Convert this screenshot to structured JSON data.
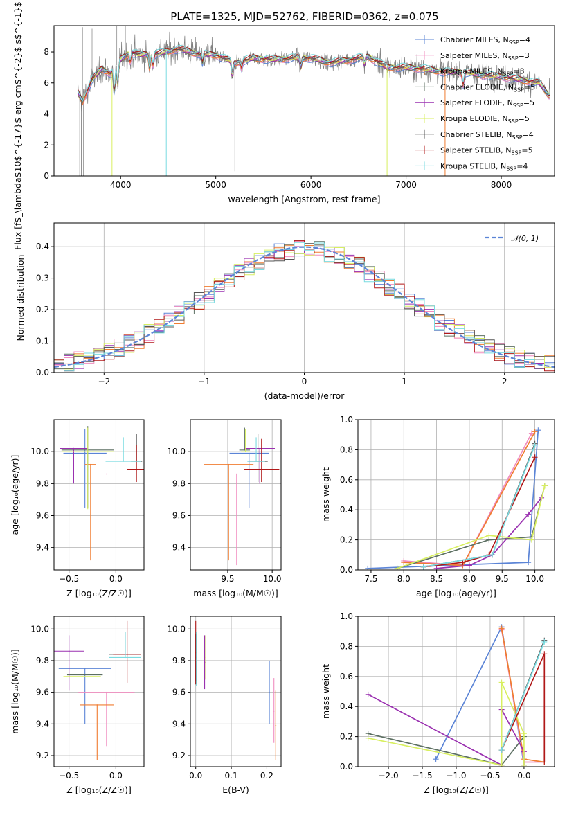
{
  "figure": {
    "title": "PLATE=1325, MJD=52762, FIBERID=0362, z=0.075"
  },
  "colors": {
    "Chabrier MILES": "#5b84d6",
    "Salpeter MILES": "#f08cbf",
    "Kroupa MILES": "#f07c30",
    "Chabrier ELODIE": "#5c6f62",
    "Salpeter ELODIE": "#9a30b0",
    "Kroupa ELODIE": "#d8ef60",
    "Chabrier STELIB": "#555555",
    "Salpeter STELIB": "#b01818",
    "Kroupa STELIB": "#79dbe0",
    "data": "#7f7f7f",
    "normal": "#5b84d6",
    "grid": "#b0b0b0"
  },
  "chart_data": [
    {
      "id": "spectrum",
      "type": "line",
      "xlabel": "wavelength [Angstrom, rest frame]",
      "ylabel": "Flux [f$_\\lambda$10$^{-17}$ erg cm$^{-2}$ s$^{-1}$ A$^{-1}$]",
      "xlim": [
        3300,
        8560
      ],
      "ylim": [
        0,
        9.7
      ],
      "xticks": [
        "4000",
        "5000",
        "6000",
        "7000",
        "8000"
      ],
      "yticks": [
        "0",
        "2",
        "4",
        "6",
        "8"
      ],
      "legend_position": "right",
      "continuum": {
        "x": [
          3550,
          3600,
          3700,
          3800,
          3900,
          4000,
          4100,
          4200,
          4400,
          4600,
          4800,
          5000,
          5200,
          5400,
          5600,
          5800,
          6000,
          6200,
          6400,
          6600,
          6800,
          7000,
          7200,
          7400,
          7600,
          7800,
          8000,
          8200,
          8400,
          8500
        ],
        "y": [
          5.4,
          4.8,
          6.2,
          6.9,
          6.6,
          7.5,
          8.0,
          7.8,
          7.9,
          8.2,
          7.9,
          7.8,
          7.3,
          7.6,
          7.5,
          7.6,
          7.6,
          7.3,
          7.5,
          7.7,
          7.0,
          7.0,
          6.9,
          6.7,
          6.7,
          6.5,
          6.4,
          6.2,
          6.0,
          5.2
        ]
      },
      "series": [
        {
          "name": "Chabrier MILES",
          "n_ssp": "4"
        },
        {
          "name": "Salpeter MILES",
          "n_ssp": "3"
        },
        {
          "name": "Kroupa MILES",
          "n_ssp": "3"
        },
        {
          "name": "Chabrier ELODIE",
          "n_ssp": "5"
        },
        {
          "name": "Salpeter ELODIE",
          "n_ssp": "5"
        },
        {
          "name": "Kroupa ELODIE",
          "n_ssp": "5"
        },
        {
          "name": "Chabrier STELIB",
          "n_ssp": "4"
        },
        {
          "name": "Salpeter STELIB",
          "n_ssp": "5"
        },
        {
          "name": "Kroupa STELIB",
          "n_ssp": "4"
        }
      ]
    },
    {
      "id": "residuals",
      "type": "histogram",
      "xlabel": "(data-model)/error",
      "ylabel": "Normed distribution",
      "xlim": [
        -2.5,
        2.5
      ],
      "ylim": [
        0,
        0.475
      ],
      "xticks": [
        "−2",
        "−1",
        "0",
        "1",
        "2"
      ],
      "yticks": [
        "0.0",
        "0.1",
        "0.2",
        "0.3",
        "0.4"
      ],
      "reference_curve": "𝒩(0, 1)",
      "legend_position": "top-right",
      "bin_width": 0.1
    },
    {
      "id": "age_vs_Z",
      "type": "scatter",
      "xlabel": "Z [log₁₀(Z/Z☉)]",
      "ylabel": "age  [log₁₀(age/yr)]",
      "xlim": [
        -0.66,
        0.3
      ],
      "ylim": [
        9.26,
        10.2
      ],
      "xticks": [
        "−0.5",
        "0.0"
      ],
      "yticks": [
        "9.4",
        "9.6",
        "9.8",
        "10.0"
      ],
      "points": [
        {
          "series": "Chabrier MILES",
          "x": -0.33,
          "xerr": 0.23,
          "y": 9.99,
          "yerr": [
            0.34,
            0.15
          ]
        },
        {
          "series": "Salpeter MILES",
          "x": -0.1,
          "xerr": 0.23,
          "y": 9.86,
          "yerr": [
            0.0,
            0.0
          ]
        },
        {
          "series": "Kroupa MILES",
          "x": -0.27,
          "xerr": 0.06,
          "y": 9.92,
          "yerr": [
            0.6,
            0.0
          ]
        },
        {
          "series": "Chabrier ELODIE",
          "x": -0.3,
          "xerr": 0.28,
          "y": 10.01,
          "yerr": [
            0.36,
            0.15
          ]
        },
        {
          "series": "Salpeter ELODIE",
          "x": -0.45,
          "xerr": 0.15,
          "y": 10.02,
          "yerr": [
            0.22,
            0.0
          ]
        },
        {
          "series": "Kroupa ELODIE",
          "x": -0.3,
          "xerr": 0.28,
          "y": 10.0,
          "yerr": [
            0.36,
            0.15
          ]
        },
        {
          "series": "Chabrier STELIB",
          "x": 0.22,
          "xerr": 0.06,
          "y": 9.94,
          "yerr": [
            0.0,
            0.17
          ]
        },
        {
          "series": "Salpeter STELIB",
          "x": 0.22,
          "xerr": 0.1,
          "y": 9.89,
          "yerr": [
            0.08,
            0.15
          ]
        },
        {
          "series": "Kroupa STELIB",
          "x": 0.08,
          "xerr": 0.19,
          "y": 9.94,
          "yerr": [
            0.0,
            0.15
          ]
        }
      ]
    },
    {
      "id": "age_vs_mass",
      "type": "scatter",
      "xlabel": "mass [log₁₀(M/M☉)]",
      "ylabel": "",
      "xlim": [
        9.08,
        10.1
      ],
      "ylim": [
        9.26,
        10.2
      ],
      "xticks": [
        "9.5",
        "10.0"
      ],
      "yticks": [
        "9.4",
        "9.6",
        "9.8",
        "10.0"
      ],
      "points": [
        {
          "series": "Chabrier MILES",
          "x": 9.74,
          "xerr": 0.22,
          "y": 9.99,
          "yerr": [
            0.34,
            0.0
          ]
        },
        {
          "series": "Salpeter MILES",
          "x": 9.6,
          "xerr": 0.2,
          "y": 9.86,
          "yerr": [
            0.57,
            0.0
          ]
        },
        {
          "series": "Kroupa MILES",
          "x": 9.51,
          "xerr": 0.28,
          "y": 9.92,
          "yerr": [
            0.6,
            0.0
          ]
        },
        {
          "series": "Chabrier ELODIE",
          "x": 9.69,
          "xerr": 0.06,
          "y": 10.01,
          "yerr": [
            0.0,
            0.14
          ]
        },
        {
          "series": "Salpeter ELODIE",
          "x": 9.86,
          "xerr": 0.17,
          "y": 10.02,
          "yerr": [
            0.22,
            0.0
          ]
        },
        {
          "series": "Kroupa ELODIE",
          "x": 9.7,
          "xerr": 0.05,
          "y": 10.0,
          "yerr": [
            0.0,
            0.14
          ]
        },
        {
          "series": "Chabrier STELIB",
          "x": 9.84,
          "xerr": 0.11,
          "y": 9.94,
          "yerr": [
            0.13,
            0.17
          ]
        },
        {
          "series": "Salpeter STELIB",
          "x": 9.88,
          "xerr": 0.2,
          "y": 9.89,
          "yerr": [
            0.08,
            0.19
          ]
        },
        {
          "series": "Kroupa STELIB",
          "x": 9.82,
          "xerr": 0.1,
          "y": 9.94,
          "yerr": [
            0.0,
            0.15
          ]
        }
      ]
    },
    {
      "id": "weight_vs_age",
      "type": "line",
      "xlabel": "age  [log₁₀(age/yr)]",
      "ylabel": "mass weight",
      "xlim": [
        7.3,
        10.3
      ],
      "ylim": [
        0,
        1.0
      ],
      "xticks": [
        "7.5",
        "8.0",
        "8.5",
        "9.0",
        "9.5",
        "10.0"
      ],
      "yticks": [
        "0.0",
        "0.2",
        "0.4",
        "0.6",
        "0.8",
        "1.0"
      ],
      "series": [
        {
          "name": "Chabrier MILES",
          "x": [
            7.45,
            9.9,
            10.05
          ],
          "y": [
            0.01,
            0.05,
            0.93
          ]
        },
        {
          "name": "Salpeter MILES",
          "x": [
            8.0,
            8.9,
            9.95
          ],
          "y": [
            0.06,
            0.03,
            0.91
          ]
        },
        {
          "name": "Kroupa MILES",
          "x": [
            8.0,
            8.9,
            10.0
          ],
          "y": [
            0.05,
            0.03,
            0.92
          ]
        },
        {
          "name": "Chabrier ELODIE",
          "x": [
            7.9,
            9.3,
            9.95,
            10.15
          ],
          "y": [
            0.01,
            0.2,
            0.22,
            0.56
          ]
        },
        {
          "name": "Salpeter ELODIE",
          "x": [
            8.5,
            9.0,
            9.35,
            9.9,
            10.1
          ],
          "y": [
            0.01,
            0.03,
            0.1,
            0.37,
            0.48
          ]
        },
        {
          "name": "Kroupa ELODIE",
          "x": [
            7.9,
            9.3,
            9.95,
            10.15
          ],
          "y": [
            0.01,
            0.23,
            0.2,
            0.56
          ]
        },
        {
          "name": "Chabrier STELIB",
          "x": [
            8.3,
            9.35,
            10.0
          ],
          "y": [
            0.02,
            0.1,
            0.84
          ]
        },
        {
          "name": "Salpeter STELIB",
          "x": [
            8.3,
            8.9,
            9.3,
            10.0
          ],
          "y": [
            0.02,
            0.05,
            0.1,
            0.75
          ]
        },
        {
          "name": "Kroupa STELIB",
          "x": [
            8.3,
            9.35,
            10.0
          ],
          "y": [
            0.02,
            0.1,
            0.83
          ]
        }
      ]
    },
    {
      "id": "mass_vs_Z",
      "type": "scatter",
      "xlabel": "Z [log₁₀(Z/Z☉)]",
      "ylabel": "mass [log₁₀(M/M☉)]",
      "xlim": [
        -0.66,
        0.3
      ],
      "ylim": [
        9.13,
        10.08
      ],
      "xticks": [
        "−0.5",
        "0.0"
      ],
      "yticks": [
        "9.2",
        "9.4",
        "9.6",
        "9.8",
        "10.0"
      ],
      "points": [
        {
          "series": "Chabrier MILES",
          "x": -0.33,
          "xerr": 0.28,
          "y": 9.75,
          "yerr": [
            0.35,
            0.0
          ]
        },
        {
          "series": "Salpeter MILES",
          "x": -0.1,
          "xerr": 0.3,
          "y": 9.6,
          "yerr": [
            0.34,
            0.0
          ]
        },
        {
          "series": "Kroupa MILES",
          "x": -0.2,
          "xerr": 0.18,
          "y": 9.52,
          "yerr": [
            0.35,
            0.0
          ]
        },
        {
          "series": "Chabrier ELODIE",
          "x": -0.33,
          "xerr": 0.19,
          "y": 9.71,
          "yerr": [
            0.0,
            0.0
          ]
        },
        {
          "series": "Salpeter ELODIE",
          "x": -0.5,
          "xerr": 0.16,
          "y": 9.86,
          "yerr": [
            0.25,
            0.1
          ]
        },
        {
          "series": "Kroupa ELODIE",
          "x": -0.36,
          "xerr": 0.2,
          "y": 9.7,
          "yerr": [
            0.0,
            0.0
          ]
        },
        {
          "series": "Chabrier STELIB",
          "x": 0.1,
          "xerr": 0.17,
          "y": 9.84,
          "yerr": [
            0.0,
            0.14
          ]
        },
        {
          "series": "Salpeter STELIB",
          "x": 0.12,
          "xerr": 0.15,
          "y": 9.84,
          "yerr": [
            0.18,
            0.21
          ]
        },
        {
          "series": "Kroupa STELIB",
          "x": 0.1,
          "xerr": 0.17,
          "y": 9.82,
          "yerr": [
            0.0,
            0.16
          ]
        }
      ]
    },
    {
      "id": "mass_vs_ebv",
      "type": "scatter",
      "xlabel": "E(B-V)",
      "ylabel": "",
      "xlim": [
        -0.015,
        0.24
      ],
      "ylim": [
        9.13,
        10.08
      ],
      "xticks": [
        "0.0",
        "0.1",
        "0.2"
      ],
      "yticks": [
        "9.2",
        "9.4",
        "9.6",
        "9.8",
        "10.0"
      ],
      "points": [
        {
          "series": "Chabrier MILES",
          "x": 0.207,
          "y": 9.6,
          "yerr": [
            0.2,
            0.2
          ]
        },
        {
          "series": "Salpeter MILES",
          "x": 0.22,
          "y": 9.48,
          "yerr": [
            0.2,
            0.21
          ]
        },
        {
          "series": "Kroupa MILES",
          "x": 0.225,
          "y": 9.39,
          "yerr": [
            0.22,
            0.22
          ]
        },
        {
          "series": "Chabrier ELODIE",
          "x": 0.0,
          "y": 9.81,
          "yerr": [
            0.16,
            0.16
          ]
        },
        {
          "series": "Salpeter ELODIE",
          "x": 0.025,
          "y": 9.79,
          "yerr": [
            0.17,
            0.17
          ]
        },
        {
          "series": "Kroupa ELODIE",
          "x": 0.028,
          "y": 9.82,
          "yerr": [
            0.14,
            0.14
          ]
        },
        {
          "series": "Chabrier STELIB",
          "x": 0.0,
          "y": 9.82,
          "yerr": [
            0.15,
            0.15
          ]
        },
        {
          "series": "Salpeter STELIB",
          "x": 0.0,
          "y": 9.85,
          "yerr": [
            0.2,
            0.2
          ]
        },
        {
          "series": "Kroupa STELIB",
          "x": 0.002,
          "y": 9.81,
          "yerr": [
            0.17,
            0.17
          ]
        }
      ]
    },
    {
      "id": "weight_vs_Z",
      "type": "line",
      "xlabel": "Z [log₁₀(Z/Z☉)]",
      "ylabel": "mass weight",
      "xlim": [
        -2.45,
        0.45
      ],
      "ylim": [
        0,
        1.0
      ],
      "xticks": [
        "−2.0",
        "−1.5",
        "−1.0",
        "−0.5",
        "0.0"
      ],
      "yticks": [
        "0.0",
        "0.2",
        "0.4",
        "0.6",
        "0.8",
        "1.0"
      ],
      "series": [
        {
          "name": "Chabrier MILES",
          "x": [
            -1.3,
            -0.33,
            0.0
          ],
          "y": [
            0.05,
            0.93,
            0.01
          ]
        },
        {
          "name": "Salpeter MILES",
          "x": [
            -0.33,
            0.0,
            0.3
          ],
          "y": [
            0.91,
            0.03,
            0.03
          ]
        },
        {
          "name": "Kroupa MILES",
          "x": [
            -0.33,
            0.0,
            0.3
          ],
          "y": [
            0.92,
            0.05,
            0.03
          ]
        },
        {
          "name": "Chabrier ELODIE",
          "x": [
            -2.3,
            -0.33,
            0.0
          ],
          "y": [
            0.22,
            0.01,
            0.2
          ]
        },
        {
          "name": "Salpeter ELODIE",
          "x": [
            -2.3,
            -0.33,
            -0.33,
            0.0,
            0.0
          ],
          "y": [
            0.48,
            0.01,
            0.38,
            0.1,
            0.01
          ]
        },
        {
          "name": "Kroupa ELODIE",
          "x": [
            -2.3,
            -0.33,
            -0.33,
            0.0,
            0.0
          ],
          "y": [
            0.19,
            0.01,
            0.56,
            0.22,
            0.01
          ]
        },
        {
          "name": "Chabrier STELIB",
          "x": [
            -0.33,
            0.3
          ],
          "y": [
            0.11,
            0.84
          ]
        },
        {
          "name": "Salpeter STELIB",
          "x": [
            -0.33,
            0.3,
            0.3
          ],
          "y": [
            0.11,
            0.75,
            0.03
          ]
        },
        {
          "name": "Kroupa STELIB",
          "x": [
            -0.33,
            0.3
          ],
          "y": [
            0.11,
            0.83
          ]
        }
      ]
    }
  ]
}
